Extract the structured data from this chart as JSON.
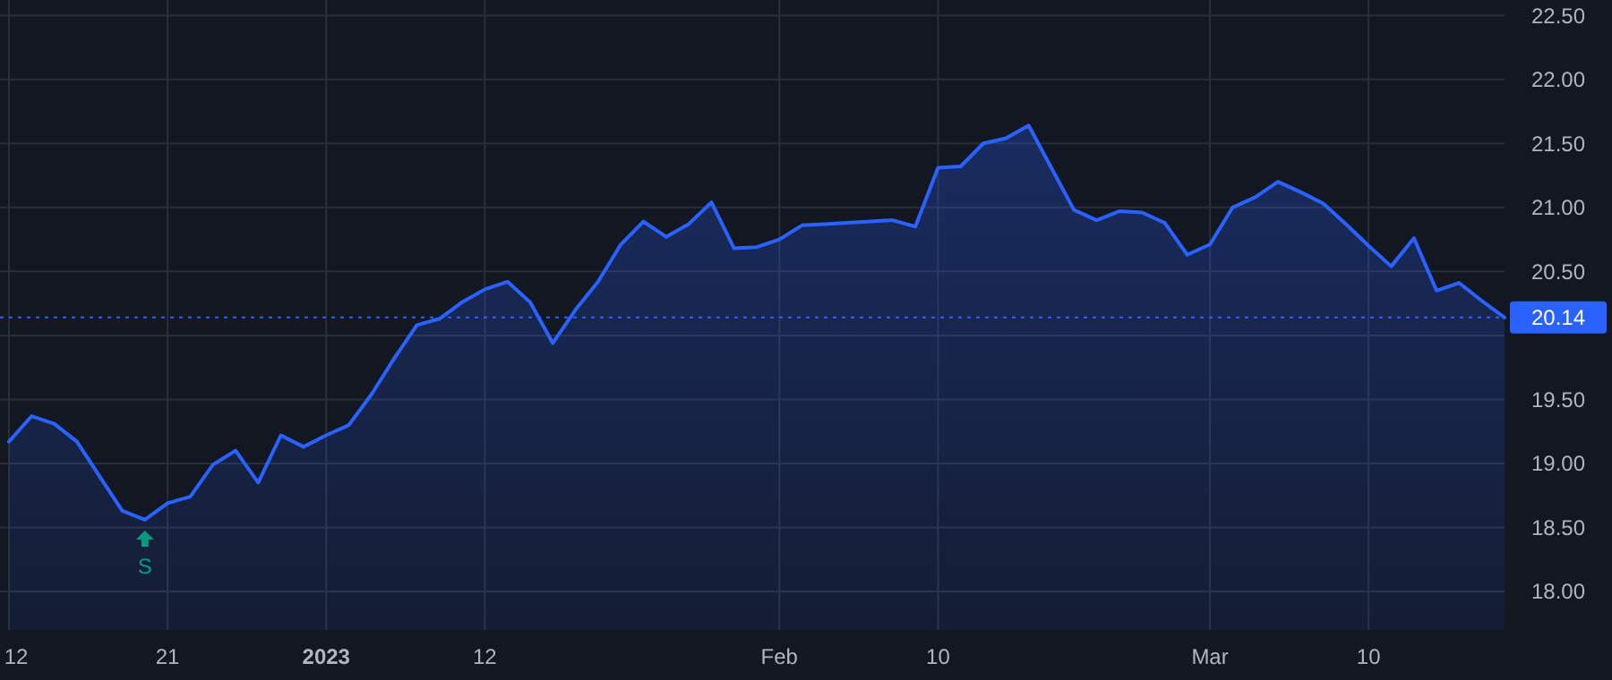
{
  "chart_data": {
    "type": "area",
    "categories": [
      "12",
      null,
      null,
      null,
      null,
      null,
      null,
      "21",
      null,
      null,
      null,
      null,
      null,
      null,
      "2023",
      null,
      null,
      null,
      null,
      null,
      null,
      "12",
      null,
      null,
      null,
      null,
      null,
      null,
      null,
      null,
      null,
      null,
      null,
      null,
      "Feb",
      null,
      null,
      null,
      null,
      null,
      null,
      "10",
      null,
      null,
      null,
      null,
      null,
      null,
      null,
      null,
      null,
      null,
      null,
      "Mar",
      null,
      null,
      null,
      null,
      null,
      null,
      "10",
      null,
      null,
      null,
      null,
      null,
      null
    ],
    "series": [
      {
        "color": "#2962ff",
        "values": [
          19.17,
          19.37,
          19.31,
          19.17,
          18.9,
          18.63,
          18.56,
          18.69,
          18.74,
          18.99,
          19.1,
          18.85,
          19.22,
          19.13,
          19.22,
          19.3,
          19.54,
          19.82,
          20.08,
          20.13,
          20.26,
          20.36,
          20.42,
          20.26,
          19.94,
          20.2,
          20.42,
          20.71,
          20.89,
          20.77,
          20.87,
          21.04,
          20.68,
          20.69,
          20.75,
          20.86,
          20.87,
          20.88,
          20.89,
          20.9,
          20.85,
          21.31,
          21.32,
          21.5,
          21.54,
          21.64,
          21.31,
          20.98,
          20.9,
          20.97,
          20.96,
          20.88,
          20.63,
          20.71,
          21.0,
          21.08,
          21.2,
          21.12,
          21.03,
          20.87,
          20.7,
          20.54,
          20.76,
          20.35,
          20.41,
          20.27,
          20.14
        ]
      }
    ],
    "ylim": [
      17.7,
      22.62
    ],
    "yticks": [
      {
        "value": 18,
        "label": "18.00"
      },
      {
        "value": 18.5,
        "label": "18.50"
      },
      {
        "value": 19,
        "label": "19.00"
      },
      {
        "value": 19.5,
        "label": "19.50"
      },
      {
        "value": 20,
        "label": null
      },
      {
        "value": 20.5,
        "label": "20.50"
      },
      {
        "value": 21,
        "label": "21.00"
      },
      {
        "value": 21.5,
        "label": "21.50"
      },
      {
        "value": 22,
        "label": "22.00"
      },
      {
        "value": 22.5,
        "label": "22.50"
      }
    ],
    "grid": true,
    "ref_lines": [
      {
        "axis": "y",
        "value": 20.14,
        "label": "20.14",
        "color": "#2962ff",
        "line_style": "dotted"
      }
    ],
    "annotations": [
      {
        "text": "S",
        "y": 18.56
      }
    ]
  }
}
